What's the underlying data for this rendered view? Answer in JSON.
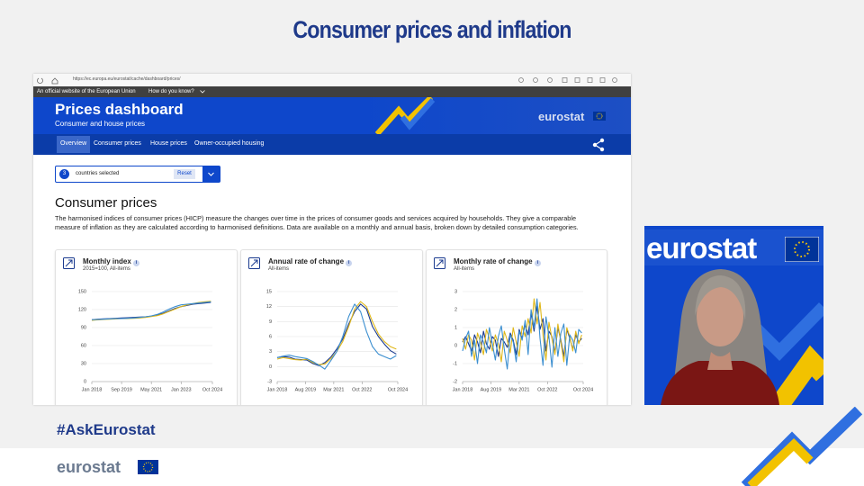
{
  "slide": {
    "title": "Consumer prices and inflation",
    "hashtag": "#AskEurostat",
    "logo": "eurostat"
  },
  "browser": {
    "url": "https://ec.europa.eu/eurostat/cache/dashboard/prices/"
  },
  "site": {
    "official_banner": "An official website of the European Union",
    "how_link": "How do you know?",
    "title": "Prices dashboard",
    "subtitle": "Consumer and house prices",
    "logo": "eurostat",
    "nav": [
      "Overview",
      "Consumer prices",
      "House prices",
      "Owner-occupied housing"
    ],
    "selector": {
      "count": "3",
      "label": "countries selected",
      "reset": "Reset"
    },
    "section_title": "Consumer prices",
    "description": "The harmonised indices of consumer prices (HICP) measure the changes over time in the prices of consumer goods and services acquired by households. They give a comparable measure of inflation as they are calculated according to harmonised definitions. Data are available on a monthly and annual basis, broken down by detailed consumption categories."
  },
  "video": {
    "logo": "eurostat"
  },
  "chart_data": [
    {
      "type": "line",
      "title": "Monthly index",
      "subtitle": "2015=100, All-items",
      "x": [
        2018,
        2018.333,
        2018.667,
        2019,
        2019.333,
        2019.667,
        2020,
        2020.333,
        2020.667,
        2021,
        2021.333,
        2021.667,
        2022,
        2022.333,
        2022.667,
        2023,
        2023.333,
        2023.667,
        2024,
        2024.333,
        2024.667
      ],
      "xlim": [
        2018,
        2024.75
      ],
      "xticks": [
        {
          "value": 2018,
          "label": "Jan 2018"
        },
        {
          "value": 2019.667,
          "label": "Sep 2019"
        },
        {
          "value": 2021.333,
          "label": "May 2021"
        },
        {
          "value": 2023,
          "label": "Jan 2023"
        },
        {
          "value": 2024.75,
          "label": "Oct 2024"
        }
      ],
      "ylim": [
        0,
        150
      ],
      "yticks": [
        0,
        30,
        60,
        90,
        120,
        150
      ],
      "grid": true,
      "series": [
        {
          "color": "#1a3a8f",
          "values": [
            103,
            104,
            104.5,
            105,
            105.5,
            106,
            106.5,
            107,
            107.5,
            108,
            109,
            111,
            114,
            118,
            122,
            125,
            127,
            129,
            130,
            131,
            132
          ]
        },
        {
          "color": "#e0b81a",
          "values": [
            102,
            103,
            103.5,
            104,
            104.5,
            105,
            105,
            105.5,
            106,
            107,
            108.5,
            110,
            113,
            117,
            121,
            125,
            128,
            130,
            132,
            133,
            134
          ]
        },
        {
          "color": "#3c8fd0",
          "values": [
            103,
            103.5,
            104,
            104.5,
            105,
            105,
            105.5,
            106,
            107,
            108,
            109.5,
            112,
            116,
            121,
            125,
            128,
            129,
            130,
            131,
            132,
            133
          ]
        }
      ]
    },
    {
      "type": "line",
      "title": "Annual rate of change",
      "subtitle": "All-items",
      "x": [
        2018,
        2018.333,
        2018.667,
        2019,
        2019.333,
        2019.667,
        2020,
        2020.333,
        2020.667,
        2021,
        2021.333,
        2021.667,
        2022,
        2022.333,
        2022.667,
        2023,
        2023.333,
        2023.667,
        2024,
        2024.333,
        2024.667
      ],
      "xlim": [
        2018,
        2024.75
      ],
      "xticks": [
        {
          "value": 2018,
          "label": "Jan 2018"
        },
        {
          "value": 2019.583,
          "label": "Aug 2019"
        },
        {
          "value": 2021.167,
          "label": "Mar 2021"
        },
        {
          "value": 2022.75,
          "label": "Oct 2022"
        },
        {
          "value": 2024.75,
          "label": "Oct 2024"
        }
      ],
      "ylim": [
        -3,
        15
      ],
      "yticks": [
        -3,
        0,
        3,
        6,
        9,
        12,
        15
      ],
      "grid": true,
      "series": [
        {
          "color": "#1a3a8f",
          "values": [
            1.8,
            2.0,
            1.9,
            1.5,
            1.4,
            1.3,
            0.6,
            0.2,
            0.8,
            1.9,
            3.5,
            5.5,
            8.5,
            11,
            12.5,
            11.5,
            8,
            6,
            4.5,
            3.2,
            2.5
          ]
        },
        {
          "color": "#e0b81a",
          "values": [
            1.5,
            1.8,
            1.6,
            1.4,
            1.3,
            1.5,
            0.8,
            0.4,
            0.5,
            1.6,
            3.0,
            5.0,
            8.0,
            11.5,
            13,
            12,
            9,
            6.5,
            5,
            4,
            3.5
          ]
        },
        {
          "color": "#3c8fd0",
          "values": [
            1.8,
            2.1,
            2.3,
            2.0,
            1.8,
            1.6,
            1.0,
            0.3,
            -0.5,
            1.2,
            3.0,
            6.0,
            10,
            12.5,
            11,
            7,
            4,
            2.5,
            2.0,
            1.5,
            2.2
          ]
        }
      ]
    },
    {
      "type": "line",
      "title": "Monthly rate of change",
      "subtitle": "All-items",
      "x": [
        2018,
        2018.167,
        2018.333,
        2018.5,
        2018.667,
        2018.833,
        2019,
        2019.167,
        2019.333,
        2019.5,
        2019.667,
        2019.833,
        2020,
        2020.167,
        2020.333,
        2020.5,
        2020.667,
        2020.833,
        2021,
        2021.167,
        2021.333,
        2021.5,
        2021.667,
        2021.833,
        2022,
        2022.167,
        2022.333,
        2022.5,
        2022.667,
        2022.833,
        2023,
        2023.167,
        2023.333,
        2023.5,
        2023.667,
        2023.833,
        2024,
        2024.167,
        2024.333,
        2024.5,
        2024.667
      ],
      "xlim": [
        2018,
        2024.75
      ],
      "xticks": [
        {
          "value": 2018,
          "label": "Jan 2018"
        },
        {
          "value": 2019.583,
          "label": "Aug 2019"
        },
        {
          "value": 2021.167,
          "label": "Mar 2021"
        },
        {
          "value": 2022.75,
          "label": "Oct 2022"
        },
        {
          "value": 2024.75,
          "label": "Oct 2024"
        }
      ],
      "ylim": [
        -2,
        3
      ],
      "yticks": [
        -2,
        -1,
        0,
        1,
        2,
        3
      ],
      "grid": true,
      "series": [
        {
          "color": "#1a3a8f",
          "values": [
            0.2,
            0.5,
            0.1,
            -0.3,
            0.6,
            0.2,
            -0.4,
            0.8,
            0.1,
            -0.2,
            0.5,
            0.3,
            -0.6,
            0.4,
            0.2,
            -0.1,
            0.7,
            0.3,
            -0.5,
            0.9,
            0.4,
            1.2,
            0.6,
            1.8,
            0.8,
            2.2,
            0.9,
            1.5,
            -0.3,
            0.8,
            0.5,
            -0.4,
            1.0,
            0.3,
            -0.6,
            0.9,
            0.4,
            -0.2,
            0.6,
            0.2,
            0.4
          ]
        },
        {
          "color": "#e0b81a",
          "values": [
            0.4,
            -0.2,
            0.6,
            0.3,
            -0.8,
            0.7,
            0.2,
            -0.5,
            0.9,
            0.4,
            -0.3,
            0.6,
            0.1,
            -0.9,
            0.8,
            0.3,
            -0.4,
            1.0,
            0.2,
            -0.6,
            1.1,
            0.5,
            1.5,
            0.7,
            2.6,
            1.2,
            2.4,
            0.6,
            -0.8,
            1.3,
            0.4,
            -0.5,
            1.2,
            0.2,
            -0.9,
            1.0,
            0.5,
            -0.3,
            0.8,
            0.1,
            0.6
          ]
        },
        {
          "color": "#3c8fd0",
          "values": [
            -0.3,
            0.4,
            0.8,
            -0.6,
            0.3,
            -1.0,
            0.6,
            0.2,
            -0.4,
            1.0,
            0.1,
            -0.8,
            0.5,
            1.1,
            -0.2,
            -1.3,
            0.6,
            0.2,
            -0.9,
            0.8,
            0.3,
            1.4,
            -0.5,
            2.0,
            1.0,
            2.6,
            0.4,
            -1.1,
            1.6,
            0.5,
            -1.2,
            1.0,
            -0.6,
            0.7,
            1.2,
            -1.1,
            0.6,
            0.3,
            -0.4,
            0.9,
            0.7
          ]
        }
      ]
    }
  ]
}
